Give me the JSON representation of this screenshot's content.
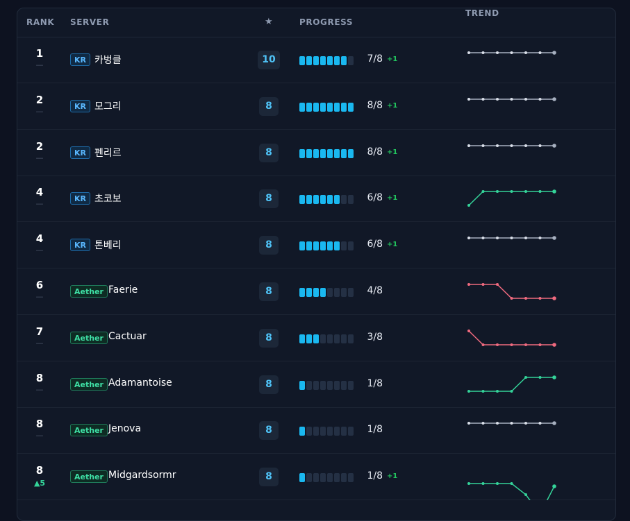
{
  "header": {
    "rank": "RANK",
    "server": "SERVER",
    "star": "★",
    "progress": "PROGRESS",
    "trend": "TREND"
  },
  "colors": {
    "kr_badge": "#5ab8ff",
    "aether_badge": "#3ee0a5",
    "progress_fill": "#1ab8f0",
    "trend_flat": "#a7b0c0",
    "trend_up": "#34d399",
    "trend_down": "#f06a7f",
    "delta_positive": "#22c55e"
  },
  "rows": [
    {
      "rank": "1",
      "change": "—",
      "region": "KR",
      "server": "카벙클",
      "stars": "10",
      "progress_done": 7,
      "progress_total": 8,
      "progress_text": "7/8",
      "delta": "+1",
      "trend_direction": "flat",
      "trend": [
        0,
        0,
        0,
        0,
        0,
        0,
        0
      ]
    },
    {
      "rank": "2",
      "change": "—",
      "region": "KR",
      "server": "모그리",
      "stars": "8",
      "progress_done": 8,
      "progress_total": 8,
      "progress_text": "8/8",
      "delta": "+1",
      "trend_direction": "flat",
      "trend": [
        0,
        0,
        0,
        0,
        0,
        0,
        0
      ]
    },
    {
      "rank": "2",
      "change": "—",
      "region": "KR",
      "server": "펜리르",
      "stars": "8",
      "progress_done": 8,
      "progress_total": 8,
      "progress_text": "8/8",
      "delta": "+1",
      "trend_direction": "flat",
      "trend": [
        0,
        0,
        0,
        0,
        0,
        0,
        0
      ]
    },
    {
      "rank": "4",
      "change": "—",
      "region": "KR",
      "server": "초코보",
      "stars": "8",
      "progress_done": 6,
      "progress_total": 8,
      "progress_text": "6/8",
      "delta": "+1",
      "trend_direction": "up",
      "trend": [
        1,
        0,
        0,
        0,
        0,
        0,
        0
      ]
    },
    {
      "rank": "4",
      "change": "—",
      "region": "KR",
      "server": "톤베리",
      "stars": "8",
      "progress_done": 6,
      "progress_total": 8,
      "progress_text": "6/8",
      "delta": "+1",
      "trend_direction": "flat",
      "trend": [
        0,
        0,
        0,
        0,
        0,
        0,
        0
      ]
    },
    {
      "rank": "6",
      "change": "—",
      "region": "Aether",
      "server": "Faerie",
      "stars": "8",
      "progress_done": 4,
      "progress_total": 8,
      "progress_text": "4/8",
      "delta": "",
      "trend_direction": "down",
      "trend": [
        0,
        0,
        0,
        1,
        1,
        1,
        1
      ]
    },
    {
      "rank": "7",
      "change": "—",
      "region": "Aether",
      "server": "Cactuar",
      "stars": "8",
      "progress_done": 3,
      "progress_total": 8,
      "progress_text": "3/8",
      "delta": "",
      "trend_direction": "down",
      "trend": [
        0,
        1,
        1,
        1,
        1,
        1,
        1
      ]
    },
    {
      "rank": "8",
      "change": "—",
      "region": "Aether",
      "server": "Adamantoise",
      "stars": "8",
      "progress_done": 1,
      "progress_total": 8,
      "progress_text": "1/8",
      "delta": "",
      "trend_direction": "up",
      "trend": [
        1,
        1,
        1,
        1,
        0,
        0,
        0
      ]
    },
    {
      "rank": "8",
      "change": "—",
      "region": "Aether",
      "server": "Jenova",
      "stars": "8",
      "progress_done": 1,
      "progress_total": 8,
      "progress_text": "1/8",
      "delta": "",
      "trend_direction": "flat",
      "trend": [
        0,
        0,
        0,
        0,
        0,
        0,
        0
      ]
    },
    {
      "rank": "8",
      "change": "▲5",
      "change_up": true,
      "region": "Aether",
      "server": "Midgardsormr",
      "stars": "8",
      "progress_done": 1,
      "progress_total": 8,
      "progress_text": "1/8",
      "delta": "+1",
      "trend_direction": "up",
      "trend": [
        1,
        1,
        1,
        1,
        1.8,
        3.2,
        1.2
      ]
    }
  ]
}
